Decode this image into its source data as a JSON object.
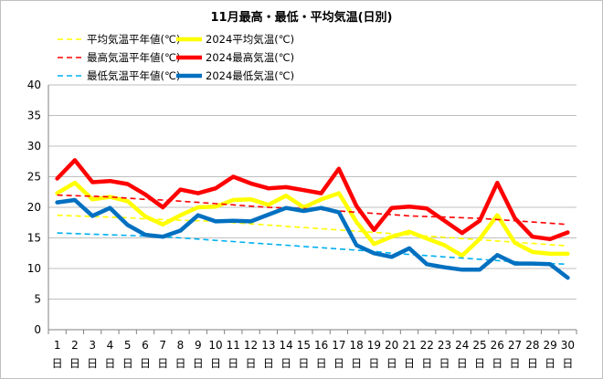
{
  "chart_data": {
    "type": "line",
    "title": "11月最高・最低・平均気温(日別)",
    "xlabel": "",
    "ylabel": "",
    "ylim": [
      0,
      40
    ],
    "yticks": [
      0,
      5,
      10,
      15,
      20,
      25,
      30,
      35,
      40
    ],
    "grid": true,
    "legend_position": "top-left",
    "categories": [
      "1",
      "2",
      "3",
      "4",
      "5",
      "6",
      "7",
      "8",
      "9",
      "10",
      "11",
      "12",
      "13",
      "14",
      "15",
      "16",
      "17",
      "18",
      "19",
      "20",
      "21",
      "22",
      "23",
      "24",
      "25",
      "26",
      "27",
      "28",
      "29",
      "30"
    ],
    "category_suffix": "日",
    "series": [
      {
        "name": "平均気温平年値(℃)",
        "color": "#ffff00",
        "style": "dashed",
        "values": [
          18.7,
          18.6,
          18.5,
          18.4,
          18.3,
          18.1,
          18.0,
          17.9,
          17.8,
          17.7,
          17.5,
          17.3,
          17.1,
          16.9,
          16.7,
          16.5,
          16.3,
          16.1,
          15.9,
          15.7,
          15.5,
          15.3,
          15.1,
          14.9,
          14.7,
          14.5,
          14.3,
          14.1,
          13.9,
          13.7
        ]
      },
      {
        "name": "2024平均気温(℃)",
        "color": "#ffff00",
        "style": "solid",
        "values": [
          22.3,
          24.0,
          21.3,
          21.7,
          21.0,
          18.5,
          17.2,
          18.7,
          20.0,
          20.1,
          21.2,
          21.3,
          20.4,
          21.9,
          20.0,
          21.3,
          22.3,
          17.6,
          14.0,
          15.2,
          16.0,
          14.9,
          13.8,
          12.1,
          14.8,
          18.7,
          14.2,
          12.7,
          12.4,
          12.4
        ]
      },
      {
        "name": "最高気温平年値(℃)",
        "color": "#ff0000",
        "style": "dashed",
        "values": [
          22.0,
          21.9,
          21.8,
          21.7,
          21.5,
          21.3,
          21.2,
          21.0,
          20.8,
          20.6,
          20.4,
          20.2,
          20.0,
          19.9,
          19.8,
          19.6,
          19.4,
          19.2,
          19.0,
          18.8,
          18.6,
          18.5,
          18.4,
          18.3,
          18.2,
          18.0,
          17.8,
          17.6,
          17.4,
          17.2
        ]
      },
      {
        "name": "2024最高気温(℃)",
        "color": "#ff0000",
        "style": "solid",
        "values": [
          24.7,
          27.7,
          24.1,
          24.3,
          23.8,
          22.1,
          20.0,
          22.9,
          22.3,
          23.1,
          25.0,
          23.9,
          23.1,
          23.3,
          22.8,
          22.3,
          26.3,
          20.2,
          16.3,
          19.9,
          20.1,
          19.8,
          17.8,
          15.8,
          17.8,
          24.0,
          18.2,
          15.2,
          14.8,
          15.9
        ]
      },
      {
        "name": "最低気温平年値(℃)",
        "color": "#00b0f0",
        "style": "dashed",
        "values": [
          15.8,
          15.7,
          15.6,
          15.5,
          15.4,
          15.3,
          15.2,
          15.0,
          14.8,
          14.6,
          14.4,
          14.2,
          14.0,
          13.8,
          13.6,
          13.4,
          13.2,
          13.0,
          12.8,
          12.5,
          12.3,
          12.1,
          11.9,
          11.7,
          11.5,
          11.3,
          11.1,
          10.9,
          10.8,
          10.7
        ]
      },
      {
        "name": "2024最低気温(℃)",
        "color": "#0070c0",
        "style": "solid",
        "values": [
          20.8,
          21.2,
          18.6,
          19.9,
          17.1,
          15.5,
          15.2,
          16.2,
          18.7,
          17.7,
          17.8,
          17.7,
          18.8,
          19.9,
          19.4,
          19.9,
          19.2,
          13.8,
          12.5,
          11.9,
          13.3,
          10.7,
          10.2,
          9.8,
          9.8,
          12.2,
          10.8,
          10.8,
          10.7,
          8.5
        ]
      }
    ]
  }
}
